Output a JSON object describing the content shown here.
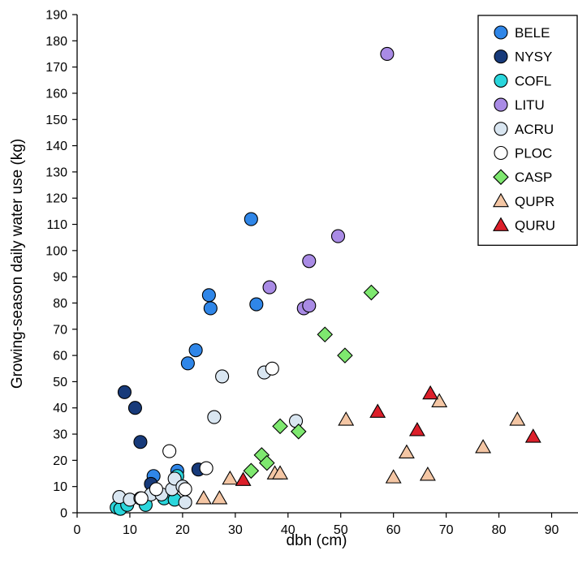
{
  "chart_data": {
    "type": "scatter",
    "xlabel": "dbh (cm)",
    "ylabel": "Growing-season daily water use (kg)",
    "xlim": [
      0,
      95
    ],
    "ylim": [
      0,
      190
    ],
    "xticks": [
      0,
      10,
      20,
      30,
      40,
      50,
      60,
      70,
      80,
      90
    ],
    "yticks": [
      0,
      10,
      20,
      30,
      40,
      50,
      60,
      70,
      80,
      90,
      100,
      110,
      120,
      130,
      140,
      150,
      160,
      170,
      180,
      190
    ],
    "grid": false,
    "legend_position": "top-right",
    "series": [
      {
        "name": "BELE",
        "marker": "circle",
        "color": "#2f86e8",
        "points": [
          [
            14.5,
            14
          ],
          [
            19,
            16
          ],
          [
            22.5,
            62
          ],
          [
            21,
            57
          ],
          [
            25,
            83
          ],
          [
            25.3,
            78
          ],
          [
            33,
            112
          ],
          [
            34,
            79.5
          ]
        ]
      },
      {
        "name": "NYSY",
        "marker": "circle",
        "color": "#173a7a",
        "points": [
          [
            9,
            46
          ],
          [
            11,
            40
          ],
          [
            12,
            27
          ],
          [
            14,
            11
          ],
          [
            23,
            16.5
          ]
        ]
      },
      {
        "name": "COFL",
        "marker": "circle",
        "color": "#2ad6dc",
        "points": [
          [
            7.5,
            2
          ],
          [
            8.2,
            1.5
          ],
          [
            9.5,
            3
          ],
          [
            13,
            3
          ],
          [
            16.5,
            5.5
          ],
          [
            18.5,
            5
          ],
          [
            19,
            14
          ]
        ]
      },
      {
        "name": "LITU",
        "marker": "circle",
        "color": "#a98be5",
        "points": [
          [
            58.8,
            175
          ],
          [
            49.5,
            105.5
          ],
          [
            44,
            96
          ],
          [
            36.5,
            86
          ],
          [
            43,
            78
          ],
          [
            44,
            79
          ]
        ]
      },
      {
        "name": "ACRU",
        "marker": "circle",
        "color": "#d9e6f1",
        "points": [
          [
            8,
            6
          ],
          [
            10,
            5
          ],
          [
            12,
            5.5
          ],
          [
            14,
            7
          ],
          [
            16,
            7
          ],
          [
            18,
            9
          ],
          [
            18.5,
            13
          ],
          [
            20,
            10
          ],
          [
            20.5,
            4
          ],
          [
            26,
            36.5
          ],
          [
            27.5,
            52
          ],
          [
            35.5,
            53.5
          ],
          [
            41.5,
            35
          ]
        ]
      },
      {
        "name": "PLOC",
        "marker": "circle",
        "color": "#ffffff",
        "points": [
          [
            12.2,
            5.5
          ],
          [
            15,
            9
          ],
          [
            17.5,
            23.5
          ],
          [
            20.5,
            9
          ],
          [
            24.5,
            17
          ],
          [
            37,
            55
          ]
        ]
      },
      {
        "name": "CASP",
        "marker": "diamond",
        "color": "#7ee86f",
        "points": [
          [
            33,
            16
          ],
          [
            35,
            22
          ],
          [
            36,
            19
          ],
          [
            38.5,
            33
          ],
          [
            42,
            31
          ],
          [
            47,
            68
          ],
          [
            50.8,
            60
          ],
          [
            55.8,
            84
          ]
        ]
      },
      {
        "name": "QUPR",
        "marker": "triangle",
        "color": "#f4c6a4",
        "points": [
          [
            24,
            5.5
          ],
          [
            27,
            5.5
          ],
          [
            29,
            13
          ],
          [
            37.5,
            15
          ],
          [
            38.5,
            15
          ],
          [
            51,
            35.5
          ],
          [
            60,
            13.5
          ],
          [
            62.5,
            23
          ],
          [
            66.5,
            14.5
          ],
          [
            68.7,
            42.5
          ],
          [
            77,
            25
          ],
          [
            83.5,
            35.5
          ]
        ]
      },
      {
        "name": "QURU",
        "marker": "triangle",
        "color": "#dc1f2a",
        "points": [
          [
            31.5,
            12.5
          ],
          [
            57,
            38.5
          ],
          [
            64.5,
            31.5
          ],
          [
            67,
            45.5
          ],
          [
            86.5,
            29
          ]
        ]
      }
    ]
  }
}
